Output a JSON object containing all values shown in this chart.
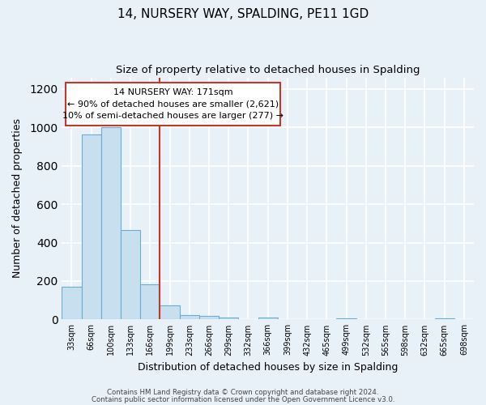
{
  "title": "14, NURSERY WAY, SPALDING, PE11 1GD",
  "subtitle": "Size of property relative to detached houses in Spalding",
  "xlabel": "Distribution of detached houses by size in Spalding",
  "ylabel": "Number of detached properties",
  "bin_labels": [
    "33sqm",
    "66sqm",
    "100sqm",
    "133sqm",
    "166sqm",
    "199sqm",
    "233sqm",
    "266sqm",
    "299sqm",
    "332sqm",
    "366sqm",
    "399sqm",
    "432sqm",
    "465sqm",
    "499sqm",
    "532sqm",
    "565sqm",
    "598sqm",
    "632sqm",
    "665sqm",
    "698sqm"
  ],
  "bin_values": [
    170,
    965,
    1000,
    465,
    185,
    75,
    25,
    18,
    10,
    0,
    10,
    0,
    0,
    0,
    5,
    0,
    0,
    0,
    0,
    5,
    0
  ],
  "bar_color": "#c8dff0",
  "bar_edge_color": "#6aaed6",
  "vline_color": "#c0392b",
  "annotation_text_line1": "14 NURSERY WAY: 171sqm",
  "annotation_text_line2": "← 90% of detached houses are smaller (2,621)",
  "annotation_text_line3": "10% of semi-detached houses are larger (277) →",
  "ylim": [
    0,
    1260
  ],
  "yticks": [
    0,
    200,
    400,
    600,
    800,
    1000,
    1200
  ],
  "footer_line1": "Contains HM Land Registry data © Crown copyright and database right 2024.",
  "footer_line2": "Contains public sector information licensed under the Open Government Licence v3.0.",
  "background_color": "#e8f0f8",
  "plot_bg_color": "#e8f0f8",
  "grid_color": "#ffffff",
  "vline_bin_index": 4
}
